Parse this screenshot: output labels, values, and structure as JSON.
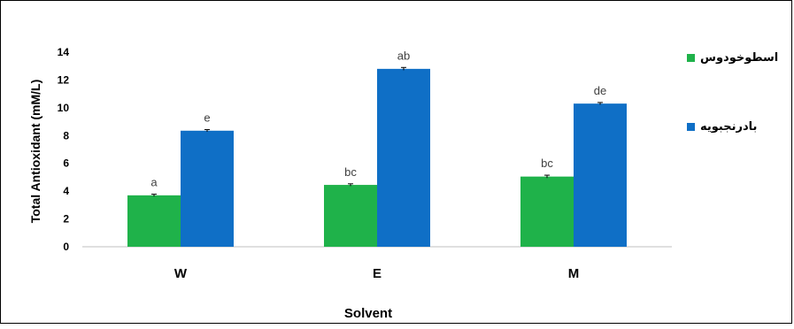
{
  "chart_data": {
    "type": "bar",
    "categories": [
      "W",
      "E",
      "M"
    ],
    "series": [
      {
        "name": "اسطوخودوس",
        "color": "#1fb24a",
        "values": [
          3.7,
          4.45,
          5.05
        ],
        "errors": [
          0.08,
          0.08,
          0.1
        ],
        "labels": [
          "a",
          "bc",
          "bc"
        ]
      },
      {
        "name": "بادرنجبويه",
        "color": "#0f6fc6",
        "values": [
          8.35,
          12.8,
          10.3
        ],
        "errors": [
          0.08,
          0.1,
          0.08
        ],
        "labels": [
          "e",
          "ab",
          "de"
        ]
      }
    ],
    "xlabel": "Solvent",
    "ylabel": "Total Antioxidant (mM/L)",
    "ylim": [
      0,
      14
    ],
    "yticks": [
      0,
      2,
      4,
      6,
      8,
      10,
      12,
      14
    ],
    "grid": false,
    "legend": "right"
  }
}
